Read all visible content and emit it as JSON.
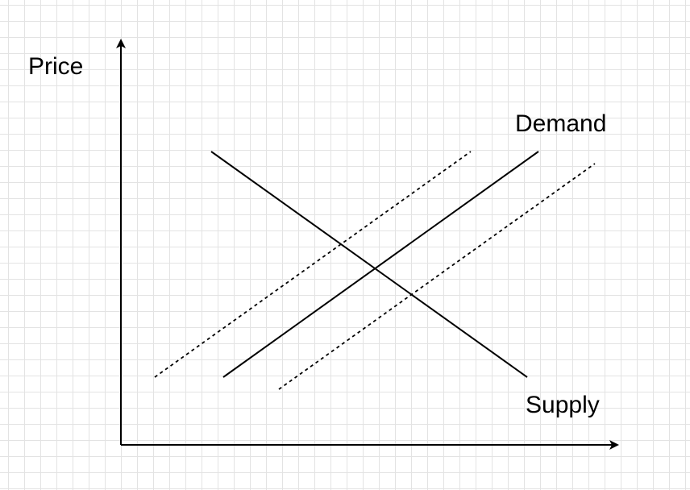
{
  "diagram": {
    "y_axis_label": "Price",
    "curve_labels": {
      "demand": "Demand",
      "supply": "Supply"
    },
    "curves": [
      {
        "id": "downward-sloping-curve",
        "style": "solid"
      },
      {
        "id": "upward-sloping-curve",
        "style": "solid"
      },
      {
        "id": "upward-sloping-curve-left-shift",
        "style": "dashed"
      },
      {
        "id": "upward-sloping-curve-right-shift",
        "style": "dashed"
      }
    ],
    "colors": {
      "line": "#000000",
      "grid": "#e3e3e3",
      "background": "#ffffff"
    }
  }
}
